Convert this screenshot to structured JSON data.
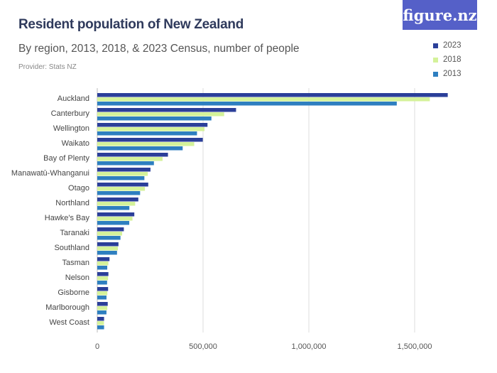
{
  "header": {
    "title": "Resident population of New Zealand",
    "subtitle": "By region, 2013, 2018, & 2023 Census, number of people",
    "provider": "Provider: Stats NZ",
    "logo": "figure.nz"
  },
  "chart_data": {
    "type": "bar",
    "orientation": "horizontal",
    "title": "Resident population of New Zealand",
    "subtitle": "By region, 2013, 2018, & 2023 Census, number of people",
    "categories": [
      "Auckland",
      "Canterbury",
      "Wellington",
      "Waikato",
      "Bay of Plenty",
      "Manawatū-Whanganui",
      "Otago",
      "Northland",
      "Hawke's Bay",
      "Taranaki",
      "Southland",
      "Tasman",
      "Nelson",
      "Gisborne",
      "Marlborough",
      "West Coast"
    ],
    "series": [
      {
        "name": "2023",
        "color": "#2b3f99",
        "values": [
          1656486,
          655899,
          520971,
          498771,
          334140,
          251412,
          240900,
          194007,
          175074,
          125598,
          100143,
          57807,
          52584,
          51135,
          49431,
          32148
        ]
      },
      {
        "name": "2018",
        "color": "#d4f29a",
        "values": [
          1571718,
          599694,
          506814,
          458202,
          308499,
          238797,
          225186,
          179076,
          166368,
          117561,
          97467,
          52389,
          50880,
          47517,
          47340,
          31575
        ]
      },
      {
        "name": "2013",
        "color": "#2e7fc0",
        "values": [
          1415550,
          539436,
          471315,
          403641,
          267744,
          222672,
          202467,
          151689,
          151179,
          109608,
          93342,
          47157,
          46437,
          43656,
          43416,
          32148
        ]
      }
    ],
    "xlim": [
      0,
      1800000
    ],
    "xticks": [
      0,
      500000,
      1000000,
      1500000
    ],
    "xtick_labels": [
      "0",
      "500,000",
      "1,000,000",
      "1,500,000"
    ],
    "grid": true,
    "legend_position": "top-right"
  }
}
